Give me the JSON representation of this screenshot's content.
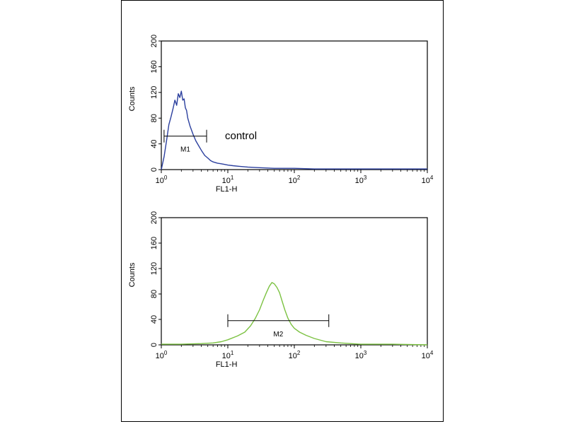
{
  "chart_data": [
    {
      "type": "line",
      "xscale": "log",
      "xlim": [
        1,
        10000
      ],
      "ylim": [
        0,
        200
      ],
      "xlabel": "FL1-H",
      "ylabel": "Counts",
      "yticks": [
        0,
        40,
        80,
        120,
        160,
        200
      ],
      "xtick_bases": [
        "10",
        "10",
        "10",
        "10",
        "10"
      ],
      "xtick_exps": [
        "0",
        "1",
        "2",
        "3",
        "4"
      ],
      "color": "#2b3f9e",
      "annotation": "control",
      "gate": {
        "label": "M1",
        "from": 1.1,
        "to": 4.8,
        "y": 52
      },
      "series": [
        {
          "x": [
            1.0,
            1.1,
            1.2,
            1.3,
            1.4,
            1.5,
            1.6,
            1.7,
            1.8,
            1.9,
            2.0,
            2.1,
            2.2,
            2.3,
            2.4,
            2.5,
            2.7,
            3.0,
            3.3,
            3.6,
            4.0,
            4.5,
            5.0,
            5.5,
            6.0,
            7.0,
            8.0,
            9.0,
            10,
            12,
            15,
            20,
            30,
            50,
            100,
            200,
            500,
            1000,
            3000,
            10000
          ],
          "y": [
            0,
            20,
            45,
            70,
            82,
            95,
            108,
            100,
            118,
            112,
            122,
            108,
            110,
            96,
            92,
            80,
            68,
            55,
            45,
            38,
            30,
            22,
            18,
            14,
            12,
            10,
            9,
            8,
            7,
            6,
            5,
            4,
            3,
            2,
            2,
            1,
            1,
            1,
            1,
            1
          ]
        }
      ]
    },
    {
      "type": "line",
      "xscale": "log",
      "xlim": [
        1,
        10000
      ],
      "ylim": [
        0,
        200
      ],
      "xlabel": "FL1-H",
      "ylabel": "Counts",
      "yticks": [
        0,
        40,
        80,
        120,
        160,
        200
      ],
      "xtick_bases": [
        "10",
        "10",
        "10",
        "10",
        "10"
      ],
      "xtick_exps": [
        "0",
        "1",
        "2",
        "3",
        "4"
      ],
      "color": "#7cc242",
      "annotation": "",
      "gate": {
        "label": "M2",
        "from": 10,
        "to": 330,
        "y": 38
      },
      "series": [
        {
          "x": [
            1,
            2,
            4,
            6,
            8,
            10,
            14,
            18,
            22,
            26,
            30,
            34,
            38,
            42,
            46,
            50,
            55,
            60,
            65,
            72,
            80,
            90,
            100,
            120,
            150,
            200,
            300,
            500,
            1000,
            3000,
            10000
          ],
          "y": [
            1,
            1,
            2,
            3,
            5,
            8,
            14,
            20,
            30,
            42,
            55,
            70,
            82,
            92,
            98,
            96,
            90,
            82,
            70,
            55,
            42,
            32,
            26,
            20,
            15,
            10,
            5,
            3,
            1,
            1,
            0
          ]
        }
      ]
    }
  ]
}
